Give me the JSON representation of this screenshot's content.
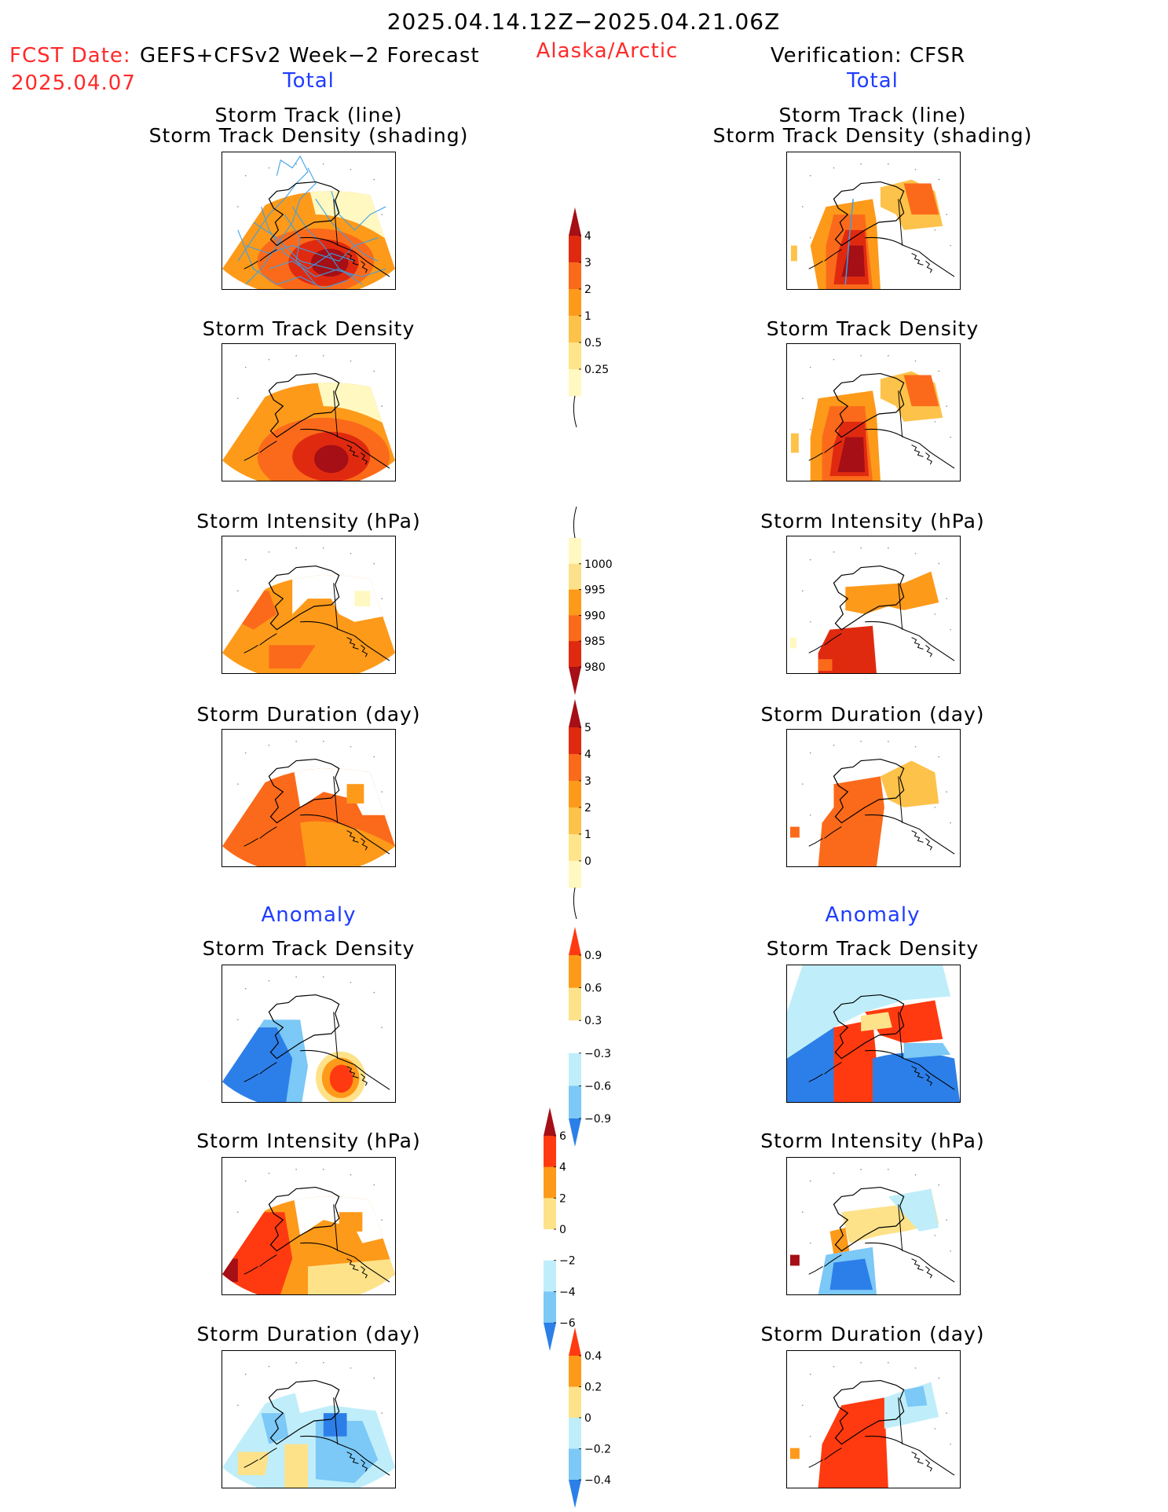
{
  "header": {
    "period": "2025.04.14.12Z−2025.04.21.06Z",
    "fcst_label": "FCST Date:",
    "fcst_model": "GEFS+CFSv2 Week−2 Forecast",
    "fcst_date": "2025.04.07",
    "region": "Alaska/Arctic",
    "verification": "Verification: CFSR",
    "left_section": "Total",
    "right_section": "Total",
    "anomaly_left": "Anomaly",
    "anomaly_right": "Anomaly"
  },
  "panels": {
    "track_line": "Storm Track (line)",
    "track_shading": "Storm Track Density (shading)",
    "track_density": "Storm Track Density",
    "intensity": "Storm Intensity (hPa)",
    "duration": "Storm Duration (day)"
  },
  "colorbars": {
    "density_total": {
      "labels": [
        "4",
        "3",
        "2",
        "1",
        "0.5",
        "0.25"
      ],
      "colors": [
        "#a50f15",
        "#e02a10",
        "#fb6a1a",
        "#fd9a1a",
        "#fdc24a",
        "#fee48a",
        "#fff8c0"
      ]
    },
    "intensity_total": {
      "labels": [
        "1000",
        "995",
        "990",
        "985",
        "980"
      ],
      "colors": [
        "#fff8c0",
        "#fde18a",
        "#fd9a1a",
        "#fb6a1a",
        "#e02a10",
        "#a50f15"
      ]
    },
    "duration_total": {
      "labels": [
        "5",
        "4",
        "3",
        "2",
        "1",
        "0"
      ],
      "colors": [
        "#a50f15",
        "#e02a10",
        "#fb6a1a",
        "#fd9a1a",
        "#fdc24a",
        "#fee48a",
        "#fff8c0"
      ]
    },
    "density_anom": {
      "labels": [
        "0.9",
        "0.6",
        "0.3",
        "−0.3",
        "−0.6",
        "−0.9"
      ],
      "colors": [
        "#ff3a10",
        "#fd9a1a",
        "#fde28a",
        "#ffffff",
        "#bfeefa",
        "#7cc8f6",
        "#2c7fe8"
      ]
    },
    "intensity_anom": {
      "labels": [
        "6",
        "4",
        "2",
        "0",
        "−2",
        "−4",
        "−6"
      ],
      "colors": [
        "#a50f15",
        "#ff3a10",
        "#fd9a1a",
        "#fde28a",
        "#ffffff",
        "#bfeefa",
        "#7cc8f6",
        "#2c7fe8"
      ]
    },
    "duration_anom": {
      "labels": [
        "0.4",
        "0.2",
        "0",
        "−0.2",
        "−0.4"
      ],
      "colors": [
        "#ff3a10",
        "#fd9a1a",
        "#fde28a",
        "#bfeefa",
        "#7cc8f6",
        "#2c7fe8"
      ]
    }
  },
  "palette": {
    "title_red": "#ff2a2a",
    "title_blue": "#1f3cff",
    "track_line": "#3aa0e8"
  }
}
